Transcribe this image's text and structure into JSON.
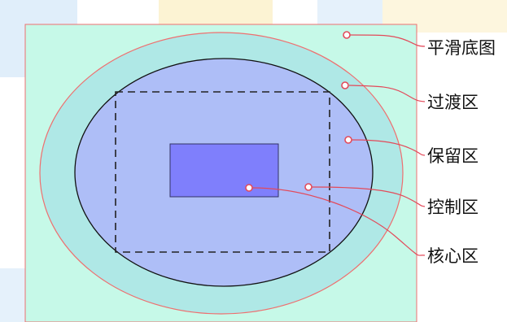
{
  "labels": {
    "smooth_base": "平滑底图",
    "transition": "过渡区",
    "reserve": "保留区",
    "control": "控制区",
    "core": "核心区"
  },
  "colors": {
    "smooth_base_fill": "#c6f9e8",
    "frame_stroke": "#ef6f6f",
    "transition_fill": "#afe8e6",
    "reserve_fill": "#aebef7",
    "core_fill": "#7f7ffc",
    "leader_line": "#e34a5a",
    "decor_blue": "#d3e7f8",
    "decor_yellow": "#fbf0c8"
  }
}
